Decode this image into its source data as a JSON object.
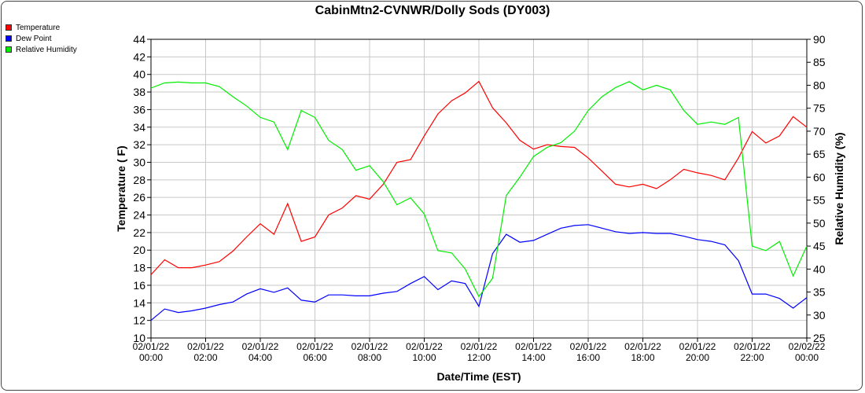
{
  "chart_data": {
    "type": "line",
    "title": "CabinMtn2-CVNWR/Dolly Sods (DY003)",
    "xlabel": "Date/Time (EST)",
    "ylabel": "Temperature ( F)",
    "y2label": "Relative Humidity (%)",
    "ylim": [
      10,
      44
    ],
    "y2lim": [
      25,
      90
    ],
    "xlim_hours": [
      0,
      24
    ],
    "grid": true,
    "legend_position": "top-left-outside",
    "x_tick_labels": [
      [
        "02/01/22",
        "00:00"
      ],
      [
        "02/01/22",
        "02:00"
      ],
      [
        "02/01/22",
        "04:00"
      ],
      [
        "02/01/22",
        "06:00"
      ],
      [
        "02/01/22",
        "08:00"
      ],
      [
        "02/01/22",
        "10:00"
      ],
      [
        "02/01/22",
        "12:00"
      ],
      [
        "02/01/22",
        "14:00"
      ],
      [
        "02/01/22",
        "16:00"
      ],
      [
        "02/01/22",
        "18:00"
      ],
      [
        "02/01/22",
        "20:00"
      ],
      [
        "02/01/22",
        "22:00"
      ],
      [
        "02/02/22",
        "00:00"
      ]
    ],
    "y_ticks": [
      10,
      12,
      14,
      16,
      18,
      20,
      22,
      24,
      26,
      28,
      30,
      32,
      34,
      36,
      38,
      40,
      42,
      44
    ],
    "y2_ticks": [
      25,
      30,
      35,
      40,
      45,
      50,
      55,
      60,
      65,
      70,
      75,
      80,
      85,
      90
    ],
    "x_hours": [
      0,
      0.5,
      1,
      1.5,
      2,
      2.5,
      3,
      3.5,
      4,
      4.5,
      5,
      5.5,
      6,
      6.5,
      7,
      7.5,
      8,
      8.5,
      9,
      9.5,
      10,
      10.5,
      11,
      11.5,
      12,
      12.5,
      13,
      13.5,
      14,
      14.5,
      15,
      15.5,
      16,
      16.5,
      17,
      17.5,
      18,
      18.5,
      19,
      19.5,
      20,
      20.5,
      21,
      21.5,
      22,
      22.5,
      23,
      23.5,
      24
    ],
    "series": [
      {
        "name": "Temperature",
        "axis": "left",
        "color": "#ff0000",
        "values": [
          17.2,
          18.9,
          18.0,
          18.0,
          18.3,
          18.7,
          19.9,
          21.5,
          23.0,
          21.8,
          25.3,
          21.0,
          21.5,
          24.0,
          24.8,
          26.2,
          25.8,
          27.5,
          30.0,
          30.3,
          33.0,
          35.5,
          37.0,
          37.9,
          39.2,
          36.2,
          34.5,
          32.5,
          31.5,
          32.0,
          31.8,
          31.7,
          30.5,
          29.0,
          27.5,
          27.2,
          27.5,
          27.0,
          28.0,
          29.2,
          28.8,
          28.5,
          28.0,
          30.5,
          33.5,
          32.2,
          33.0,
          35.2,
          34.0
        ]
      },
      {
        "name": "Dew Point",
        "axis": "left",
        "color": "#0000ff",
        "values": [
          12.0,
          13.3,
          12.9,
          13.1,
          13.4,
          13.8,
          14.1,
          15.0,
          15.6,
          15.2,
          15.7,
          14.3,
          14.1,
          14.9,
          14.9,
          14.8,
          14.8,
          15.1,
          15.3,
          16.2,
          17.0,
          15.5,
          16.5,
          16.2,
          13.6,
          19.6,
          21.8,
          20.9,
          21.1,
          21.8,
          22.5,
          22.8,
          22.9,
          22.5,
          22.1,
          21.9,
          22.0,
          21.9,
          21.9,
          21.6,
          21.2,
          21.0,
          20.6,
          18.8,
          15.0,
          15.0,
          14.5,
          13.4,
          14.6
        ]
      },
      {
        "name": "Relative Humidity",
        "axis": "right",
        "color": "#00ee00",
        "values": [
          79.4,
          80.5,
          80.7,
          80.5,
          80.5,
          79.7,
          77.5,
          75.5,
          73.0,
          72.0,
          66.0,
          74.5,
          73.0,
          68.0,
          66.0,
          61.5,
          62.5,
          59.0,
          54.0,
          55.5,
          52.0,
          44.0,
          43.5,
          40.0,
          34.0,
          38.0,
          56.0,
          60.0,
          64.5,
          66.5,
          67.5,
          70.0,
          74.5,
          77.5,
          79.5,
          80.8,
          79.0,
          80.0,
          79.0,
          74.5,
          71.5,
          72.0,
          71.5,
          73.0,
          45.0,
          44.0,
          46.0,
          38.5,
          45.0
        ]
      }
    ]
  }
}
